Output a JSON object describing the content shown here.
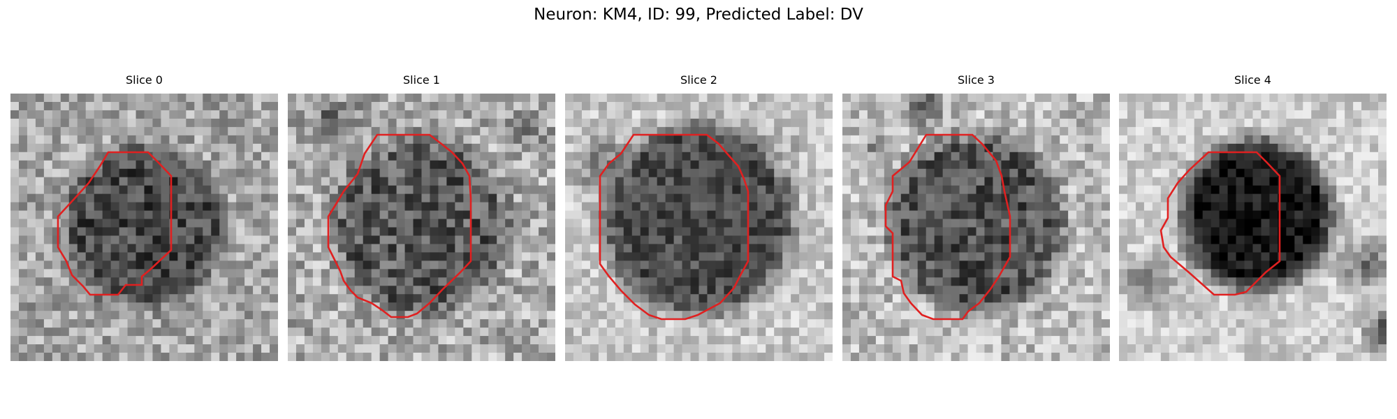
{
  "figure": {
    "title": "Neuron: KM4, ID: 99, Predicted Label: DV"
  },
  "colors": {
    "contour": "#e02020"
  },
  "slices": [
    {
      "title": "Slice 0"
    },
    {
      "title": "Slice 1"
    },
    {
      "title": "Slice 2"
    },
    {
      "title": "Slice 3"
    },
    {
      "title": "Slice 4"
    }
  ]
}
